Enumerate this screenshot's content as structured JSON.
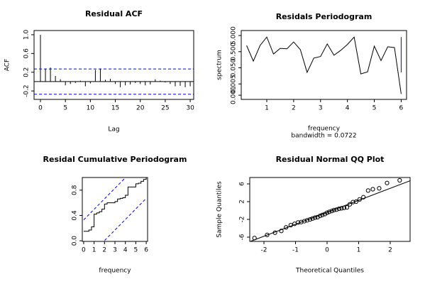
{
  "chart_data": [
    {
      "type": "acf",
      "title": "Residual ACF",
      "x_label": "Lag",
      "y_label": "ACF",
      "x": [
        0,
        1,
        2,
        3,
        4,
        5,
        6,
        7,
        8,
        9,
        10,
        11,
        12,
        13,
        14,
        15,
        16,
        17,
        18,
        19,
        20,
        21,
        22,
        23,
        24,
        25,
        26,
        27,
        28,
        29,
        30
      ],
      "values": [
        1.0,
        0.28,
        0.3,
        0.12,
        0.05,
        -0.08,
        -0.05,
        -0.03,
        0.02,
        -0.1,
        -0.04,
        0.25,
        0.28,
        0.04,
        0.06,
        -0.05,
        -0.12,
        -0.08,
        -0.06,
        -0.03,
        -0.05,
        -0.08,
        -0.06,
        0.05,
        0.02,
        -0.02,
        -0.05,
        -0.1,
        -0.09,
        -0.12,
        -0.1
      ],
      "ci": 0.27,
      "color": "#000000",
      "ci_color": "#0000ff",
      "xlim": [
        -1.28,
        30.7
      ],
      "ylim": [
        -0.38,
        1.09
      ],
      "xticks": [
        0,
        5,
        10,
        15,
        20,
        25,
        30
      ],
      "yticks": [
        -0.2,
        0.2,
        0.6,
        {
          "value": 1,
          "label": "1.0"
        }
      ]
    },
    {
      "type": "line",
      "title": "Residals Periodogram",
      "x_label": "frequency",
      "subtitle": "bandwidth = 0.0722",
      "y_label": "spectrum",
      "log_y": true,
      "x": [
        0.25,
        0.5,
        0.75,
        1,
        1.25,
        1.5,
        1.75,
        2,
        2.25,
        2.5,
        2.75,
        3,
        3.25,
        3.5,
        3.75,
        4,
        4.25,
        4.5,
        4.75,
        5,
        5.25,
        5.5,
        5.75,
        6
      ],
      "values": [
        1.2,
        0.13,
        1.2,
        4.0,
        0.36,
        0.8,
        0.75,
        2.0,
        0.66,
        0.026,
        0.2,
        0.25,
        1.5,
        0.3,
        0.6,
        1.4,
        4.0,
        0.021,
        0.028,
        1.1,
        0.14,
        1.0,
        0.9,
        0.0012
      ],
      "color": "#000000",
      "ci_color": "#0000ff",
      "ci_bar": {
        "x": 6,
        "low": 0.026,
        "high": 4.0
      },
      "xlim": [
        0.05,
        6.2
      ],
      "ylim": [
        0.00055,
        10.2
      ],
      "xticks": [
        1,
        2,
        3,
        4,
        5,
        6
      ],
      "yticks": [
        0.001,
        0.005,
        {
          "value": 0.05,
          "label": "0.050"
        },
        {
          "value": 0.5,
          "label": "0.500"
        },
        {
          "value": 5,
          "label": "5.000"
        }
      ]
    },
    {
      "type": "step",
      "title": "Residal Cumulative Periodogram",
      "x_label": "frequency",
      "x": [
        0.25,
        0.5,
        0.75,
        1,
        1.25,
        1.5,
        1.75,
        2,
        2.25,
        2.5,
        2.75,
        3,
        3.25,
        3.5,
        3.75,
        4,
        4.25,
        4.5,
        4.75,
        5,
        5.25,
        5.5,
        5.75,
        6
      ],
      "values": [
        0.15,
        0.17,
        0.22,
        0.42,
        0.44,
        0.46,
        0.5,
        0.58,
        0.6,
        0.6,
        0.6,
        0.62,
        0.66,
        0.67,
        0.68,
        0.72,
        0.85,
        0.85,
        0.85,
        0.9,
        0.91,
        0.94,
        0.97,
        1.0
      ],
      "color": "#000000",
      "ci_color": "#0000ff",
      "band_upper": {
        "x": [
          0,
          6
        ],
        "y": [
          0.33,
          1.33
        ]
      },
      "band_lower": {
        "x": [
          0,
          6
        ],
        "y": [
          -0.33,
          0.67
        ]
      },
      "xlim": [
        -0.13,
        6.13
      ],
      "ylim": [
        -0.01,
        1.0
      ],
      "xticks": [
        0,
        1,
        2,
        3,
        4,
        5,
        6
      ],
      "yticks": [
        {
          "value": 0,
          "label": "0.0"
        },
        0.4,
        0.8
      ]
    },
    {
      "type": "scatter",
      "title": "Residual Normal QQ Plot",
      "x_label": "Theoretical Quantiles",
      "y_label": "Sample Quantiles",
      "x": [
        -2.3,
        -1.9,
        -1.65,
        -1.45,
        -1.3,
        -1.15,
        -1.03,
        -0.92,
        -0.82,
        -0.72,
        -0.63,
        -0.54,
        -0.46,
        -0.38,
        -0.3,
        -0.22,
        -0.15,
        -0.07,
        0,
        0.07,
        0.15,
        0.22,
        0.3,
        0.38,
        0.46,
        0.54,
        0.63,
        0.72,
        0.82,
        0.92,
        1.03,
        1.15,
        1.3,
        1.45,
        1.65,
        1.9,
        2.3
      ],
      "values": [
        -6.2,
        -5.5,
        -5.0,
        -4.6,
        -3.8,
        -3.3,
        -3.0,
        -2.7,
        -2.6,
        -2.4,
        -2.2,
        -2.0,
        -1.8,
        -1.6,
        -1.5,
        -1.2,
        -1.0,
        -0.8,
        -0.5,
        -0.3,
        -0.1,
        0.1,
        0.2,
        0.4,
        0.5,
        0.6,
        0.7,
        1.4,
        1.9,
        2.0,
        2.5,
        3.0,
        4.5,
        4.8,
        5.0,
        6.2,
        6.8
      ],
      "color": "#000000",
      "qq_line": {
        "intercept": -0.4,
        "slope": 2.7
      },
      "xlim": [
        -2.45,
        2.63
      ],
      "ylim": [
        -6.96,
        7.44
      ],
      "xticks": [
        -2,
        -1,
        0,
        1,
        2
      ],
      "yticks": [
        -6,
        -2,
        2,
        6
      ]
    }
  ]
}
